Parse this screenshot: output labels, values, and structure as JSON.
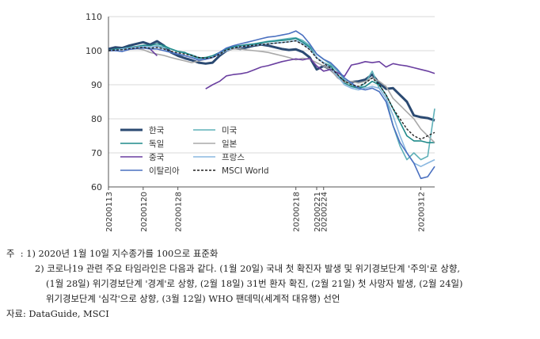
{
  "chart_data": {
    "type": "line",
    "ylim": [
      60,
      110
    ],
    "yticks": [
      60,
      70,
      80,
      90,
      100,
      110
    ],
    "x_tick_labels": [
      "20200113",
      "20200120",
      "20200128",
      "20200218",
      "20200221",
      "20200224",
      "20200312"
    ],
    "x_tick_index": [
      0,
      5,
      10,
      27,
      30,
      31,
      45
    ],
    "n_points": 48,
    "series": [
      {
        "name": "한국",
        "color": "#2b4a72",
        "width": 3,
        "dash": "",
        "values": [
          100.5,
          101,
          100.8,
          101.5,
          102,
          102.5,
          101.8,
          102.8,
          101.5,
          99.5,
          98.5,
          97.8,
          97.2,
          96.5,
          96.2,
          96.5,
          98.5,
          100,
          100.8,
          100.5,
          101,
          101.5,
          101.8,
          101.5,
          101,
          100.5,
          100.2,
          100.4,
          99.6,
          98,
          94.5,
          95.5,
          94.5,
          92.5,
          91,
          90.8,
          91,
          91.5,
          93,
          90.5,
          88.8,
          89,
          87,
          85,
          81,
          80.5,
          80.2,
          79.5
        ]
      },
      {
        "name": "미국",
        "color": "#5fb0b8",
        "width": 1.6,
        "dash": "",
        "values": [
          100,
          100.5,
          100.4,
          100.8,
          101,
          101.2,
          101,
          101.5,
          101,
          100.5,
          99.8,
          99.3,
          98.8,
          98,
          97.8,
          98,
          99,
          100.2,
          101,
          101.4,
          101.6,
          102,
          102.4,
          102.8,
          103,
          103.3,
          103.6,
          103.8,
          103,
          101.5,
          99,
          97.5,
          96,
          94,
          91.5,
          90,
          89,
          90.5,
          94,
          89,
          86,
          78,
          72,
          68,
          70,
          68,
          69,
          83
        ]
      },
      {
        "name": "독일",
        "color": "#1f8a8a",
        "width": 1.6,
        "dash": "",
        "values": [
          100,
          100.5,
          100.6,
          101,
          101.2,
          101.6,
          101.5,
          102,
          101.5,
          100.5,
          99.8,
          99.5,
          98.5,
          97.8,
          98,
          98.5,
          99.5,
          100.5,
          101.2,
          101.5,
          101.8,
          102,
          102.3,
          102.6,
          102.8,
          103,
          103.2,
          103.6,
          102.5,
          101,
          98,
          96.5,
          95.5,
          93,
          90.5,
          89.5,
          89,
          89.5,
          91,
          90,
          87,
          83,
          79,
          75,
          73.5,
          73.5,
          73,
          73
        ]
      },
      {
        "name": "일본",
        "color": "#a9a9a9",
        "width": 1.6,
        "dash": "",
        "values": [
          100,
          100,
          99.8,
          100.4,
          100.6,
          100.3,
          99.5,
          99,
          98.6,
          98,
          97.5,
          97,
          96.5,
          97,
          97.5,
          98,
          99,
          100,
          100.5,
          100.5,
          100.2,
          100,
          99.8,
          99.5,
          99,
          98.5,
          98,
          97.3,
          97.8,
          97.5,
          96.5,
          95.5,
          94.5,
          92,
          90.8,
          91,
          90.5,
          91,
          92,
          91,
          89.5,
          86,
          84,
          82,
          80,
          77,
          75,
          73
        ]
      },
      {
        "name": "중국",
        "color": "#6a3fa0",
        "width": 1.6,
        "dash": "",
        "values": [
          null,
          null,
          null,
          null,
          null,
          null,
          100.5,
          98.5,
          null,
          null,
          null,
          null,
          null,
          null,
          88.8,
          90,
          91,
          92.6,
          93,
          93.2,
          93.6,
          94.4,
          95.2,
          95.6,
          96.2,
          96.8,
          97.2,
          97.6,
          97.3,
          97.8,
          95.5,
          94,
          94.5,
          93.5,
          92.5,
          95.8,
          96.2,
          96.8,
          96.5,
          96.8,
          95.2,
          96.2,
          95.8,
          95.5,
          95,
          94.5,
          94,
          93.3
        ]
      },
      {
        "name": "프랑스",
        "color": "#8ab8e0",
        "width": 1.6,
        "dash": "",
        "values": [
          100,
          100.2,
          100.5,
          100.8,
          101,
          101.2,
          101,
          101.3,
          100.5,
          99.5,
          99,
          98.5,
          98,
          97.5,
          97.5,
          98,
          99,
          100,
          100.8,
          101.2,
          101.4,
          101.6,
          101.8,
          102,
          102.2,
          102.4,
          102.6,
          103,
          102,
          100.5,
          98,
          96.5,
          95,
          92.5,
          90,
          89,
          88.5,
          89,
          89.5,
          89,
          86,
          81,
          75,
          70,
          67,
          66,
          67,
          68
        ]
      },
      {
        "name": "이탈리아",
        "color": "#4a70c0",
        "width": 1.6,
        "dash": "",
        "values": [
          100,
          100,
          99.8,
          100.4,
          100.6,
          100.8,
          100.5,
          100.5,
          100,
          99.5,
          99,
          98.5,
          98,
          97.2,
          97.5,
          98,
          99.5,
          100.8,
          101.5,
          102,
          102.5,
          103,
          103.5,
          104,
          104.2,
          104.6,
          105,
          105.8,
          104.5,
          102,
          99,
          97.5,
          96.5,
          94.5,
          92,
          90.5,
          89,
          88.5,
          89,
          88,
          85,
          78,
          73,
          70,
          67,
          62.5,
          63,
          66
        ]
      },
      {
        "name": "MSCI World",
        "color": "#222222",
        "width": 1.4,
        "dash": "3,2",
        "values": [
          100,
          100.2,
          100.3,
          100.6,
          100.8,
          101,
          100.7,
          101,
          100.5,
          99.8,
          99.4,
          99,
          98.6,
          98,
          97.8,
          98,
          99,
          100.2,
          100.8,
          101.2,
          101.4,
          101.6,
          101.8,
          102,
          102.2,
          102.4,
          102.6,
          102.9,
          101.8,
          100.3,
          97.8,
          96.3,
          95,
          93,
          91,
          90,
          89.5,
          90.5,
          92,
          90,
          87,
          83,
          80,
          77,
          75,
          74,
          75,
          76
        ]
      }
    ]
  },
  "notes": {
    "note_label": "주",
    "note_sep": ":",
    "note1": "1) 2020년 1월 10일 지수종가를 100으로 표준화",
    "note2_line1": "2) 코로나19 관련 주요 타임라인은 다음과 같다. (1월 20일) 국내 첫 확진자 발생 및 위기경보단계 '주의'로 상향,",
    "note2_line2": "(1월 28일) 위기경보단계 '경계'로 상향, (2월 18일) 31번 환자 확진, (2월 21일) 첫 사망자 발생, (2월 24일)",
    "note2_line3": "위기경보단계 '심각'으로 상향, (3월 12일) WHO 팬데믹(세계적 대유행) 선언",
    "source": "자료: DataGuide, MSCI"
  }
}
